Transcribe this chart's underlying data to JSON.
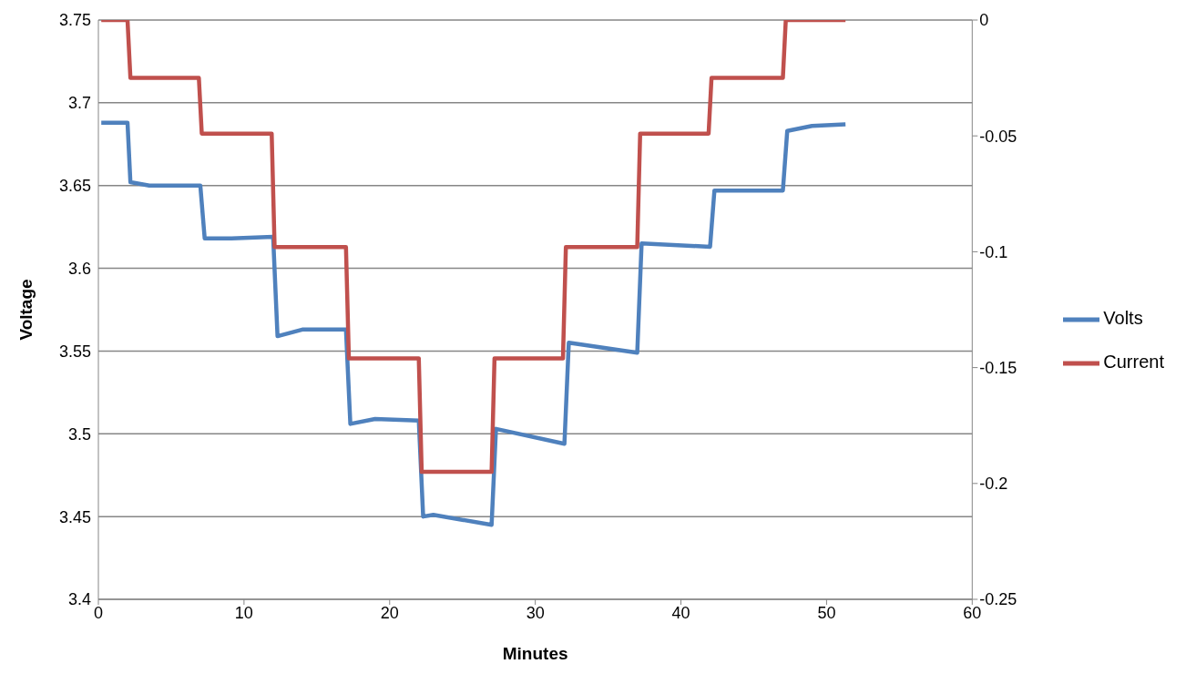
{
  "chart_data": {
    "type": "line",
    "xlabel": "Minutes",
    "ylabel": "Voltage",
    "xlim": [
      0,
      60
    ],
    "xticks": [
      0,
      10,
      20,
      30,
      40,
      50,
      60
    ],
    "ylim": [
      3.4,
      3.75
    ],
    "yticks": [
      3.4,
      3.45,
      3.5,
      3.55,
      3.6,
      3.65,
      3.7,
      3.75
    ],
    "y2lim": [
      -0.25,
      0
    ],
    "y2ticks": [
      -0.25,
      -0.2,
      -0.15,
      -0.1,
      -0.05,
      0
    ],
    "grid": "y",
    "legend": "right",
    "marker": "none",
    "line_style": "solid",
    "series": [
      {
        "name": "Volts",
        "color": "#4f81bd",
        "x": [
          0.2,
          2.0,
          2.2,
          3.5,
          7.0,
          7.3,
          9.0,
          12.0,
          12.3,
          14.0,
          17.0,
          17.3,
          19.0,
          22.0,
          22.3,
          23.0,
          27.0,
          27.3,
          32.0,
          32.3,
          37.0,
          37.3,
          42.0,
          42.3,
          47.0,
          47.3,
          49.0,
          51.3
        ],
        "values": [
          3.688,
          3.688,
          3.652,
          3.65,
          3.65,
          3.618,
          3.618,
          3.619,
          3.559,
          3.563,
          3.563,
          3.506,
          3.509,
          3.508,
          3.45,
          3.451,
          3.445,
          3.503,
          3.494,
          3.555,
          3.549,
          3.615,
          3.613,
          3.647,
          3.647,
          3.683,
          3.686,
          3.687
        ]
      },
      {
        "name": "Current",
        "color": "#c0504d",
        "axis": "y2",
        "x": [
          0.2,
          2.0,
          2.2,
          6.9,
          7.1,
          11.9,
          12.1,
          17.0,
          17.2,
          22.0,
          22.2,
          27.0,
          27.2,
          31.9,
          32.1,
          37.0,
          37.2,
          41.9,
          42.1,
          47.0,
          47.2,
          51.3
        ],
        "values": [
          0,
          0,
          -0.025,
          -0.025,
          -0.049,
          -0.049,
          -0.098,
          -0.098,
          -0.146,
          -0.146,
          -0.195,
          -0.195,
          -0.146,
          -0.146,
          -0.098,
          -0.098,
          -0.049,
          -0.049,
          -0.025,
          -0.025,
          0,
          0
        ]
      }
    ]
  }
}
